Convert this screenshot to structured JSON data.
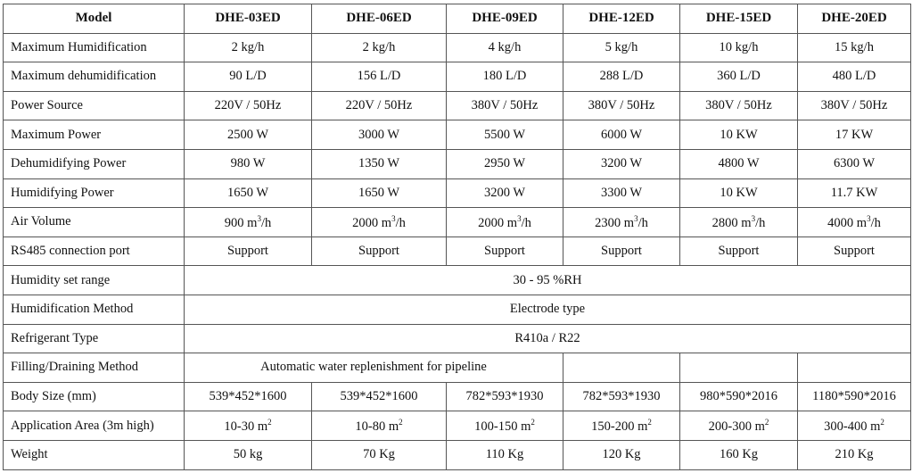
{
  "header": {
    "label": "Model",
    "models": [
      "DHE-03ED",
      "DHE-06ED",
      "DHE-09ED",
      "DHE-12ED",
      "DHE-15ED",
      "DHE-20ED"
    ]
  },
  "rows": [
    {
      "label": "Maximum Humidification",
      "values": [
        "2 kg/h",
        "2 kg/h",
        "4 kg/h",
        "5 kg/h",
        "10 kg/h",
        "15 kg/h"
      ]
    },
    {
      "label": "Maximum dehumidification",
      "values": [
        "90 L/D",
        "156 L/D",
        "180 L/D",
        "288 L/D",
        "360 L/D",
        "480 L/D"
      ]
    },
    {
      "label": "Power Source",
      "values": [
        "220V / 50Hz",
        "220V / 50Hz",
        "380V / 50Hz",
        "380V / 50Hz",
        "380V / 50Hz",
        "380V / 50Hz"
      ]
    },
    {
      "label": "Maximum Power",
      "values": [
        "2500 W",
        "3000 W",
        "5500 W",
        "6000 W",
        "10 KW",
        "17 KW"
      ]
    },
    {
      "label": "Dehumidifying Power",
      "values": [
        "980 W",
        "1350 W",
        "2950 W",
        "3200 W",
        "4800 W",
        "6300 W"
      ]
    },
    {
      "label": "Humidifying Power",
      "values": [
        "1650 W",
        "1650 W",
        "3200 W",
        "3300 W",
        "10 KW",
        "11.7 KW"
      ]
    },
    {
      "label": "Air Volume",
      "values": [
        "900 m",
        "2000 m",
        "2000 m",
        "2300 m",
        "2800 m",
        "4000 m"
      ],
      "sup": "3",
      "suffix": "/h"
    },
    {
      "label": "RS485 connection port",
      "values": [
        "Support",
        "Support",
        "Support",
        "Support",
        "Support",
        "Support"
      ]
    }
  ],
  "spanned": [
    {
      "label": "Humidity set range",
      "value": "30 - 95 %RH"
    },
    {
      "label": "Humidification Method",
      "value": "Electrode type"
    },
    {
      "label": "Refrigerant Type",
      "value": "R410a / R22"
    }
  ],
  "filling": {
    "label": "Filling/Draining Method",
    "value": "Automatic water replenishment for pipeline"
  },
  "rows2": [
    {
      "label": "Body Size (mm)",
      "values": [
        "539*452*1600",
        "539*452*1600",
        "782*593*1930",
        "782*593*1930",
        "980*590*2016",
        "1180*590*2016"
      ]
    },
    {
      "label": "Application Area (3m high)",
      "values": [
        "10-30 m",
        "10-80 m",
        "100-150 m",
        "150-200 m",
        "200-300 m",
        "300-400 m"
      ],
      "sup": "2"
    },
    {
      "label": "Weight",
      "values": [
        "50 kg",
        "70 Kg",
        "110 Kg",
        "120 Kg",
        "160 Kg",
        "210 Kg"
      ]
    }
  ]
}
